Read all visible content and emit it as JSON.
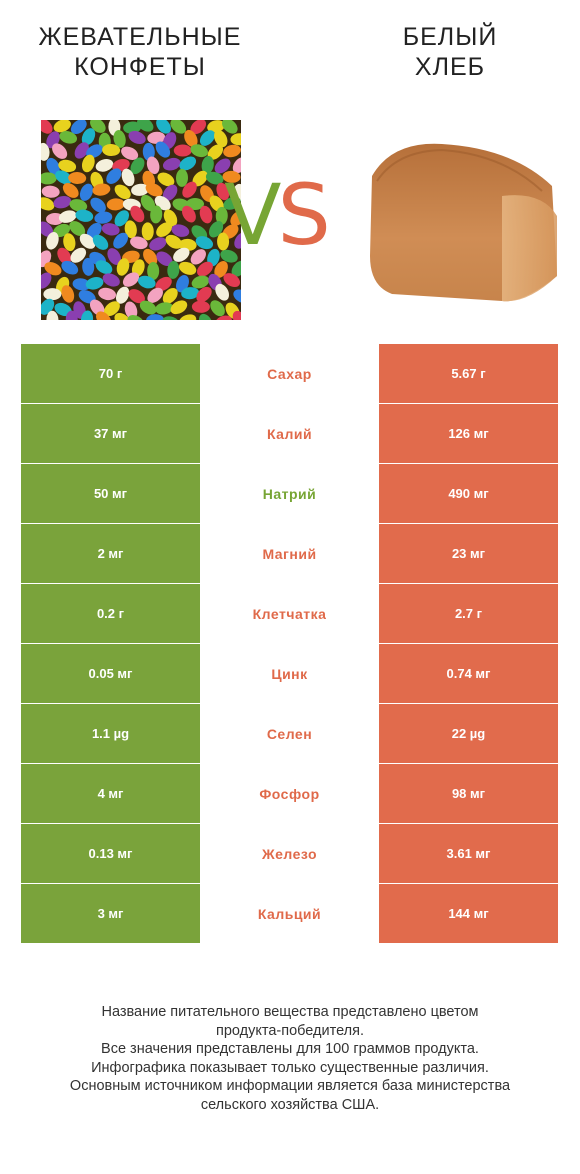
{
  "header": {
    "left_title_line1": "ЖЕВАТЕЛЬНЫЕ",
    "left_title_line2": "КОНФЕТЫ",
    "right_title_line1": "БЕЛЫЙ",
    "right_title_line2": "ХЛЕБ",
    "vs_v": "V",
    "vs_s": "S"
  },
  "colors": {
    "left_winner": "#7aa33b",
    "right_winner": "#e16b4c"
  },
  "rows": [
    {
      "left": "70 г",
      "nutrient": "Сахар",
      "right": "5.67 г",
      "winner": "right"
    },
    {
      "left": "37 мг",
      "nutrient": "Калий",
      "right": "126 мг",
      "winner": "right"
    },
    {
      "left": "50 мг",
      "nutrient": "Натрий",
      "right": "490 мг",
      "winner": "left"
    },
    {
      "left": "2 мг",
      "nutrient": "Магний",
      "right": "23 мг",
      "winner": "right"
    },
    {
      "left": "0.2 г",
      "nutrient": "Клетчатка",
      "right": "2.7 г",
      "winner": "right"
    },
    {
      "left": "0.05 мг",
      "nutrient": "Цинк",
      "right": "0.74 мг",
      "winner": "right"
    },
    {
      "left": "1.1 µg",
      "nutrient": "Селен",
      "right": "22 µg",
      "winner": "right"
    },
    {
      "left": "4 мг",
      "nutrient": "Фосфор",
      "right": "98 мг",
      "winner": "right"
    },
    {
      "left": "0.13 мг",
      "nutrient": "Железо",
      "right": "3.61 мг",
      "winner": "right"
    },
    {
      "left": "3 мг",
      "nutrient": "Кальций",
      "right": "144 мг",
      "winner": "right"
    }
  ],
  "footnote": {
    "line1": "Название питательного вещества представлено цветом",
    "line2": "продукта-победителя.",
    "line3": "Все значения представлены для 100 граммов продукта.",
    "line4": "Инфографика показывает только существенные различия.",
    "line5": "Основным источником информации является база министерства",
    "line6": "сельского хозяйства США."
  }
}
